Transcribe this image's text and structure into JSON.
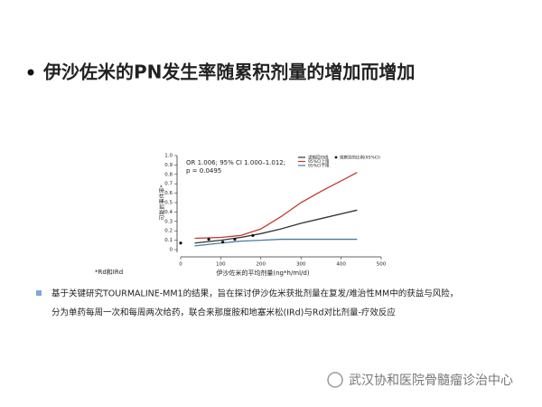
{
  "slide_title": "伊沙佐米的PN发生率随累积剂量的增加而增加",
  "chart_data": {
    "type": "line",
    "annotation": [
      "OR 1.006; 95% CI 1.000–1.012;",
      "p = 0.0495"
    ],
    "x_label": "伊沙佐米的平均剂量(ng*h/ml/d)",
    "y_label": "可能的事件率*",
    "x": [
      35,
      100,
      150,
      200,
      250,
      300,
      350,
      440
    ],
    "series": [
      {
        "name": "逻辑回归线",
        "color": "#333333",
        "values": [
          0.07,
          0.1,
          0.13,
          0.17,
          0.22,
          0.28,
          0.33,
          0.42
        ]
      },
      {
        "name": "95%CI上限",
        "color": "#c0392b",
        "values": [
          0.12,
          0.13,
          0.15,
          0.22,
          0.35,
          0.5,
          0.62,
          0.82
        ]
      },
      {
        "name": "95%CI下限",
        "color": "#4a78a8",
        "values": [
          0.04,
          0.07,
          0.09,
          0.1,
          0.11,
          0.11,
          0.11,
          0.11
        ]
      }
    ],
    "points": {
      "name": "观察到的比例(95%CI)",
      "color": "#111111",
      "x": [
        0,
        70,
        105,
        135,
        180
      ],
      "values": [
        0.07,
        0.11,
        0.08,
        0.11,
        0.15
      ]
    },
    "xlim": [
      0,
      500
    ],
    "xticks": [
      0,
      100,
      200,
      300,
      400,
      500
    ],
    "ylim": [
      0,
      1
    ],
    "yticks": [
      0,
      0.1,
      0.2,
      0.3,
      0.4,
      0.5,
      0.6,
      0.7,
      0.8,
      0.9,
      {
        "value": 1,
        "label": "1.0"
      }
    ]
  },
  "footnote": "*Rd和IRd",
  "bullet_lines": [
    "基于关键研究TOURMALINE-MM1的结果，旨在探讨伊沙佐米获批剂量在复发/难治性MM中的获益与风险，",
    "分为单药每周一次和每周两次给药，联合来那度胺和地塞米松(IRd)与Rd对比剂量-疗效反应"
  ],
  "watermark": "武汉协和医院骨髓瘤诊治中心"
}
